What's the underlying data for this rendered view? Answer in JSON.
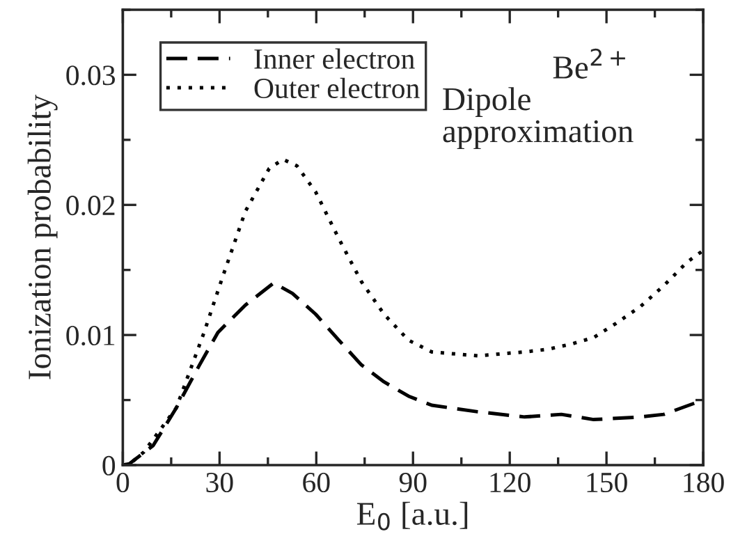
{
  "chart_data": {
    "type": "line",
    "xlabel": "E$_{0}$ [a.u.]",
    "ylabel": "Ionization probability",
    "xlim": [
      0,
      180
    ],
    "xticks": [
      0,
      30,
      60,
      90,
      120,
      150,
      180
    ],
    "ylim": [
      0,
      0.035
    ],
    "yticks": [
      0,
      0.01,
      0.02,
      0.03
    ],
    "legend": "top left",
    "grid": false,
    "annotations": [
      "Be$^{2+}$",
      "Dipole\napproximation"
    ],
    "series": [
      {
        "name": "Inner electron",
        "color": "#000000",
        "line_style": "dashed",
        "x": [
          0,
          2,
          9.4,
          16.6,
          23.8,
          29.5,
          38,
          46.8,
          52.6,
          59.8,
          67,
          74,
          81,
          88.6,
          95.8,
          110,
          124.6,
          136,
          146,
          160.6,
          167.8,
          180
        ],
        "values": [
          0,
          0.0001,
          0.0015,
          0.0044,
          0.0077,
          0.0102,
          0.0123,
          0.014,
          0.0132,
          0.0116,
          0.0096,
          0.0077,
          0.0064,
          0.0053,
          0.0046,
          0.0041,
          0.0037,
          0.0039,
          0.0035,
          0.0037,
          0.0039,
          0.005
        ]
      },
      {
        "name": "Outer electron",
        "color": "#000000",
        "line_style": "dotted",
        "x": [
          0,
          2.2,
          6.5,
          16.6,
          25.2,
          31,
          38,
          45.4,
          49.7,
          54,
          59.8,
          67,
          74,
          81,
          88.6,
          95.8,
          110,
          124.6,
          131.8,
          139,
          146,
          153,
          160.6,
          167.8,
          175,
          180
        ],
        "values": [
          0,
          0.0001,
          0.001,
          0.0044,
          0.0102,
          0.0145,
          0.0195,
          0.0228,
          0.0235,
          0.023,
          0.021,
          0.0174,
          0.0141,
          0.0116,
          0.0096,
          0.0087,
          0.0084,
          0.0087,
          0.0089,
          0.0093,
          0.0098,
          0.0109,
          0.0122,
          0.0138,
          0.0156,
          0.0165
        ]
      }
    ]
  }
}
